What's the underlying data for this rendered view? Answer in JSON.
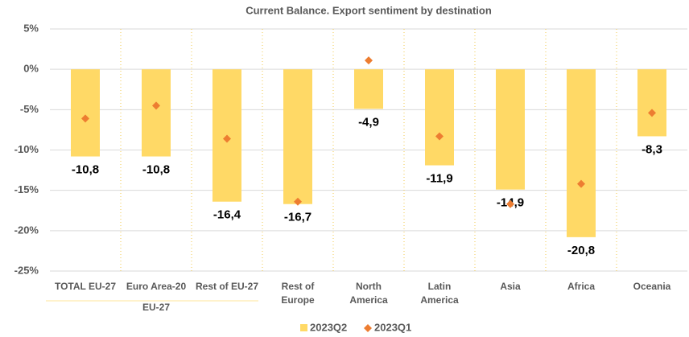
{
  "chart_data": {
    "type": "bar",
    "title": "Current Balance.  Export sentiment by destination",
    "categories": [
      "TOTAL EU-27",
      "Euro Area-20",
      "Rest of EU-27",
      "Rest of Europe",
      "North America",
      "Latin America",
      "Asia",
      "Africa",
      "Oceania"
    ],
    "groups": [
      {
        "label": "EU-27",
        "categories": [
          "TOTAL EU-27",
          "Euro Area-20",
          "Rest of EU-27"
        ]
      }
    ],
    "series": [
      {
        "name": "2023Q2",
        "kind": "bar",
        "color": "#ffd966",
        "values": [
          -10.8,
          -10.8,
          -16.4,
          -16.7,
          -4.9,
          -11.9,
          -14.9,
          -20.8,
          -8.3
        ],
        "value_labels": [
          "-10,8",
          "-10,8",
          "-16,4",
          "-16,7",
          "-4,9",
          "-11,9",
          "-14,9",
          "-20,8",
          "-8,3"
        ]
      },
      {
        "name": "2023Q1",
        "kind": "marker",
        "color": "#ed7d31",
        "values": [
          -6.1,
          -4.5,
          -8.6,
          -16.4,
          1.1,
          -8.3,
          -16.7,
          -14.2,
          -5.4
        ]
      }
    ],
    "ylim": [
      -25,
      5
    ],
    "yticks": [
      {
        "value": 5,
        "label": "5%"
      },
      {
        "value": 0,
        "label": "0%"
      },
      {
        "value": -5,
        "label": "-5%"
      },
      {
        "value": -10,
        "label": "-10%"
      },
      {
        "value": -15,
        "label": "-15%"
      },
      {
        "value": -20,
        "label": "-20%"
      },
      {
        "value": -25,
        "label": "-25%"
      }
    ],
    "legend": "bottom"
  }
}
